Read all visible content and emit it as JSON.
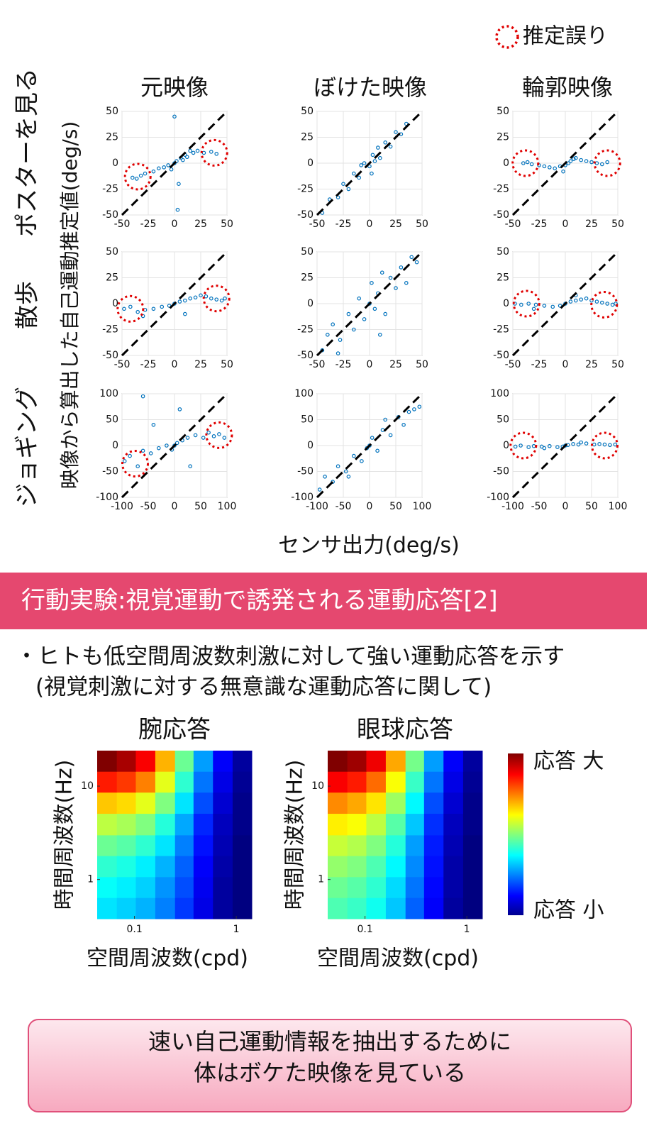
{
  "panel_grid": {
    "legend": "推定誤り",
    "column_titles": [
      "元映像",
      "ぼけた映像",
      "輪郭映像"
    ],
    "row_titles": [
      "ポスターを見る",
      "散歩",
      "ジョギング"
    ],
    "y_label": "映像から算出した自己運動推定値(deg/s)",
    "x_label": "センサ出力(deg/s)"
  },
  "chart_data": [
    {
      "type": "scatter",
      "color": "#0072bd",
      "xlim": [
        -50,
        50
      ],
      "ylim": [
        -50,
        50
      ],
      "xticks": [
        -50,
        -25,
        0,
        25,
        50
      ],
      "yticks": [
        -50,
        -25,
        0,
        25,
        50
      ],
      "grid": true,
      "x": [
        -40,
        -36,
        -32,
        -28,
        -20,
        -15,
        -10,
        -6,
        -3,
        0,
        2,
        4,
        6,
        8,
        10,
        12,
        15,
        18,
        22,
        28,
        35,
        40,
        0,
        3
      ],
      "y": [
        -14,
        -15,
        -12,
        -10,
        -8,
        -5,
        -4,
        -2,
        -6,
        0,
        2,
        -20,
        5,
        3,
        8,
        6,
        12,
        10,
        12,
        10,
        11,
        9,
        45,
        -45
      ],
      "error_regions": {
        "x": [
          -35,
          38
        ],
        "y": [
          -13,
          10
        ]
      }
    },
    {
      "type": "scatter",
      "color": "#0072bd",
      "xlim": [
        -50,
        50
      ],
      "ylim": [
        -50,
        50
      ],
      "xticks": [
        -50,
        -25,
        0,
        25,
        50
      ],
      "yticks": [
        -50,
        -25,
        0,
        25,
        50
      ],
      "grid": true,
      "x": [
        -45,
        -38,
        -30,
        -25,
        -20,
        -15,
        -10,
        -5,
        0,
        3,
        5,
        8,
        10,
        15,
        20,
        25,
        30,
        35,
        -8,
        2
      ],
      "y": [
        -48,
        -35,
        -33,
        -20,
        -25,
        -10,
        -14,
        0,
        -3,
        8,
        2,
        15,
        5,
        20,
        16,
        30,
        28,
        38,
        -2,
        -10
      ]
    },
    {
      "type": "scatter",
      "color": "#0072bd",
      "xlim": [
        -50,
        50
      ],
      "ylim": [
        -50,
        50
      ],
      "xticks": [
        -50,
        -25,
        0,
        25,
        50
      ],
      "yticks": [
        -50,
        -25,
        0,
        25,
        50
      ],
      "grid": true,
      "x": [
        -40,
        -36,
        -32,
        -25,
        -20,
        -15,
        -10,
        -5,
        0,
        3,
        5,
        8,
        10,
        15,
        20,
        25,
        30,
        35,
        40,
        -2
      ],
      "y": [
        0,
        1,
        -1,
        -2,
        -3,
        -4,
        -5,
        -3,
        -2,
        0,
        2,
        4,
        5,
        3,
        2,
        1,
        0,
        -1,
        1,
        -8
      ],
      "error_regions": {
        "x": [
          -38,
          40
        ],
        "y": [
          0,
          0
        ]
      }
    },
    {
      "type": "scatter",
      "color": "#0072bd",
      "xlim": [
        -50,
        50
      ],
      "ylim": [
        -50,
        50
      ],
      "xticks": [
        -50,
        -25,
        0,
        25,
        50
      ],
      "yticks": [
        -50,
        -25,
        0,
        25,
        50
      ],
      "grid": true,
      "x": [
        -48,
        -42,
        -35,
        -28,
        -20,
        -12,
        -5,
        0,
        5,
        10,
        15,
        20,
        25,
        30,
        35,
        40,
        45,
        48,
        -30,
        10
      ],
      "y": [
        -5,
        -3,
        -8,
        -6,
        -5,
        -3,
        -2,
        0,
        2,
        3,
        5,
        6,
        8,
        7,
        5,
        4,
        3,
        5,
        -12,
        -10
      ],
      "error_regions": {
        "x": [
          -42,
          40
        ],
        "y": [
          -5,
          5
        ]
      }
    },
    {
      "type": "scatter",
      "color": "#0072bd",
      "xlim": [
        -50,
        50
      ],
      "ylim": [
        -50,
        50
      ],
      "xticks": [
        -50,
        -25,
        0,
        25,
        50
      ],
      "yticks": [
        -50,
        -25,
        0,
        25,
        50
      ],
      "grid": true,
      "x": [
        -45,
        -40,
        -35,
        -28,
        -20,
        -15,
        -10,
        -5,
        0,
        2,
        5,
        8,
        12,
        15,
        20,
        25,
        30,
        35,
        40,
        45,
        -30,
        10
      ],
      "y": [
        -45,
        -30,
        -20,
        -35,
        -10,
        -25,
        5,
        -15,
        0,
        20,
        -5,
        10,
        30,
        -10,
        25,
        15,
        35,
        20,
        45,
        40,
        -48,
        -30
      ]
    },
    {
      "type": "scatter",
      "color": "#0072bd",
      "xlim": [
        -50,
        50
      ],
      "ylim": [
        -50,
        50
      ],
      "xticks": [
        -50,
        -25,
        0,
        25,
        50
      ],
      "yticks": [
        -50,
        -25,
        0,
        25,
        50
      ],
      "grid": true,
      "x": [
        -48,
        -42,
        -35,
        -28,
        -20,
        -12,
        -5,
        0,
        5,
        10,
        15,
        20,
        25,
        30,
        35,
        40,
        45,
        48,
        -30,
        10
      ],
      "y": [
        0,
        -1,
        0,
        -1,
        -2,
        -3,
        -2,
        0,
        2,
        3,
        4,
        5,
        3,
        2,
        1,
        0,
        -1,
        0,
        -5,
        8
      ],
      "error_regions": {
        "x": [
          -37,
          37
        ],
        "y": [
          0,
          -1
        ]
      }
    },
    {
      "type": "scatter",
      "color": "#0072bd",
      "xlim": [
        -100,
        100
      ],
      "ylim": [
        -100,
        100
      ],
      "xticks": [
        -100,
        -50,
        0,
        50,
        100
      ],
      "yticks": [
        -100,
        -50,
        0,
        50,
        100
      ],
      "grid": true,
      "x": [
        -95,
        -85,
        -70,
        -60,
        -45,
        -30,
        -15,
        -5,
        0,
        5,
        15,
        25,
        40,
        55,
        65,
        75,
        85,
        95,
        -60,
        10,
        -40,
        30
      ],
      "y": [
        -30,
        -20,
        -40,
        -10,
        -15,
        -5,
        0,
        -8,
        0,
        5,
        10,
        15,
        20,
        15,
        25,
        18,
        22,
        15,
        95,
        70,
        40,
        -40
      ],
      "error_regions": {
        "x": [
          -75,
          85
        ],
        "y": [
          -35,
          20
        ]
      }
    },
    {
      "type": "scatter",
      "color": "#0072bd",
      "xlim": [
        -100,
        100
      ],
      "ylim": [
        -100,
        100
      ],
      "xticks": [
        -100,
        -50,
        0,
        50,
        100
      ],
      "yticks": [
        -100,
        -50,
        0,
        50,
        100
      ],
      "grid": true,
      "x": [
        -95,
        -85,
        -70,
        -60,
        -45,
        -30,
        -15,
        -5,
        0,
        5,
        15,
        25,
        40,
        55,
        65,
        75,
        85,
        95,
        -40,
        30
      ],
      "y": [
        -85,
        -60,
        -70,
        -40,
        -50,
        -20,
        -30,
        -5,
        0,
        15,
        -10,
        30,
        20,
        55,
        40,
        65,
        70,
        75,
        -60,
        50
      ]
    },
    {
      "type": "scatter",
      "color": "#0072bd",
      "xlim": [
        -100,
        100
      ],
      "ylim": [
        -100,
        100
      ],
      "xticks": [
        -100,
        -50,
        0,
        50,
        100
      ],
      "yticks": [
        -100,
        -50,
        0,
        50,
        100
      ],
      "grid": true,
      "x": [
        -95,
        -85,
        -70,
        -60,
        -45,
        -30,
        -15,
        -5,
        0,
        5,
        15,
        25,
        40,
        55,
        65,
        75,
        85,
        95,
        -40,
        30
      ],
      "y": [
        -2,
        0,
        -3,
        -1,
        -2,
        -1,
        -3,
        -2,
        0,
        1,
        3,
        2,
        4,
        2,
        3,
        2,
        1,
        2,
        -5,
        6
      ],
      "error_regions": {
        "x": [
          -80,
          75
        ],
        "y": [
          0,
          0
        ]
      }
    },
    {
      "type": "heatmap",
      "title": "腕応答",
      "x_label": "空間周波数(cpd)",
      "y_label": "時間周波数(Hz)",
      "log_x": true,
      "log_y": true,
      "xlim": [
        0.043,
        1.42
      ],
      "ylim": [
        0.38,
        24
      ],
      "xticks": [
        0.1,
        1
      ],
      "yticks": [
        1,
        10
      ],
      "xbins": [
        0.043,
        0.067,
        0.103,
        0.16,
        0.25,
        0.38,
        0.59,
        0.92,
        1.42
      ],
      "ybins": [
        0.38,
        0.64,
        1.07,
        1.8,
        3.0,
        5.1,
        8.6,
        14.4,
        24
      ],
      "z": [
        [
          0.35,
          0.33,
          0.3,
          0.25,
          0.18,
          0.1,
          0.03,
          0
        ],
        [
          0.38,
          0.36,
          0.33,
          0.27,
          0.2,
          0.11,
          0.03,
          0
        ],
        [
          0.42,
          0.4,
          0.36,
          0.3,
          0.22,
          0.12,
          0.04,
          0
        ],
        [
          0.48,
          0.46,
          0.42,
          0.35,
          0.25,
          0.14,
          0.05,
          0
        ],
        [
          0.56,
          0.54,
          0.5,
          0.41,
          0.29,
          0.16,
          0.06,
          0.01
        ],
        [
          0.68,
          0.66,
          0.6,
          0.5,
          0.35,
          0.2,
          0.08,
          0.01
        ],
        [
          0.85,
          0.82,
          0.75,
          0.6,
          0.42,
          0.24,
          0.1,
          0.02
        ],
        [
          1,
          0.96,
          0.88,
          0.7,
          0.48,
          0.28,
          0.12,
          0.03
        ]
      ]
    },
    {
      "type": "heatmap",
      "title": "眼球応答",
      "x_label": "空間周波数(cpd)",
      "y_label": "時間周波数(Hz)",
      "log_x": true,
      "log_y": true,
      "xlim": [
        0.043,
        1.42
      ],
      "ylim": [
        0.38,
        24
      ],
      "xticks": [
        0.1,
        1
      ],
      "yticks": [
        1,
        10
      ],
      "xbins": [
        0.043,
        0.067,
        0.103,
        0.16,
        0.25,
        0.38,
        0.59,
        0.92,
        1.42
      ],
      "ybins": [
        0.38,
        0.64,
        1.07,
        1.8,
        3.0,
        5.1,
        8.6,
        14.4,
        24
      ],
      "z": [
        [
          0.45,
          0.43,
          0.39,
          0.32,
          0.22,
          0.12,
          0.03,
          0
        ],
        [
          0.48,
          0.46,
          0.42,
          0.34,
          0.24,
          0.13,
          0.04,
          0
        ],
        [
          0.52,
          0.5,
          0.45,
          0.37,
          0.26,
          0.14,
          0.04,
          0
        ],
        [
          0.57,
          0.55,
          0.5,
          0.41,
          0.28,
          0.15,
          0.05,
          0
        ],
        [
          0.64,
          0.62,
          0.56,
          0.46,
          0.32,
          0.17,
          0.06,
          0.01
        ],
        [
          0.74,
          0.71,
          0.65,
          0.53,
          0.37,
          0.2,
          0.08,
          0.01
        ],
        [
          0.88,
          0.85,
          0.77,
          0.62,
          0.43,
          0.24,
          0.1,
          0.02
        ],
        [
          1,
          0.97,
          0.89,
          0.71,
          0.49,
          0.28,
          0.12,
          0.03
        ]
      ]
    }
  ],
  "colorbar": {
    "high": "応答 大",
    "low": "応答 小"
  },
  "section_header": "行動実験:視覚運動で誘発される運動応答[2]",
  "bullets": [
    "・ヒトも低空間周波数刺激に対して強い運動応答を示す",
    "(視覚刺激に対する無意識な運動応答に関して)"
  ],
  "conclusion": [
    "速い自己運動情報を抽出するために",
    "体はボケた映像を見ている"
  ]
}
